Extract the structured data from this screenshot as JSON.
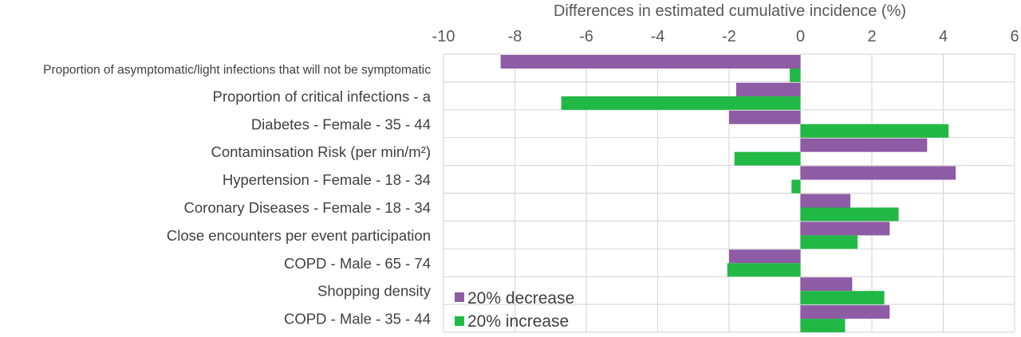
{
  "chart_data": {
    "type": "bar",
    "orientation": "horizontal",
    "xlabel": "Differences in estimated cumulative incidence (%)",
    "xlim": [
      -10,
      6
    ],
    "xticks": [
      -10,
      -8,
      -6,
      -4,
      -2,
      0,
      2,
      4,
      6
    ],
    "grid": true,
    "legend_position": "bottom-left",
    "categories": [
      "Proportion of asymptomatic/light infections that will not be symptomatic",
      "Proportion of critical infections - a",
      "Diabetes - Female - 35 - 44",
      "Contaminsation Risk (per min/m²)",
      "Hypertension - Female - 18 - 34",
      "Coronary Diseases - Female - 18 - 34",
      "Close encounters per event participation",
      "COPD - Male - 65 - 74",
      "Shopping density",
      "COPD - Male - 35 - 44"
    ],
    "series": [
      {
        "name": "20% decrease",
        "color": "#8E5BA5",
        "values": [
          -8.4,
          -1.8,
          -2.0,
          3.55,
          4.35,
          1.4,
          2.5,
          -2.0,
          1.45,
          2.5
        ]
      },
      {
        "name": "20% increase",
        "color": "#22B845",
        "values": [
          -0.3,
          -6.7,
          4.15,
          -1.85,
          -0.25,
          2.75,
          1.6,
          -2.05,
          2.35,
          1.25
        ]
      }
    ]
  }
}
